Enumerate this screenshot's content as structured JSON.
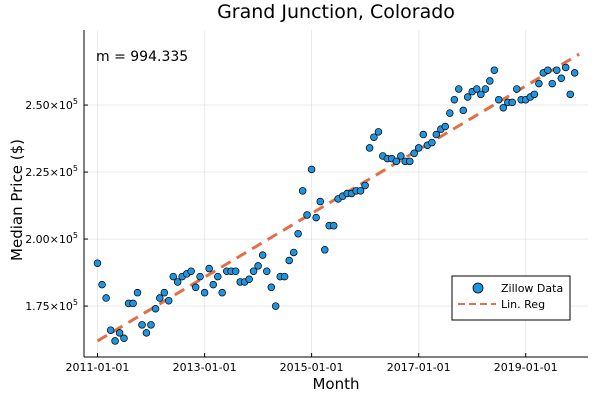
{
  "chart_data": {
    "type": "scatter",
    "title": "Grand Junction, Colorado",
    "xlabel": "Month",
    "ylabel": "Median Price ($)",
    "annotation": "m = 994.335",
    "x_ticks": [
      "2011-01-01",
      "2013-01-01",
      "2015-01-01",
      "2017-01-01",
      "2019-01-01"
    ],
    "y_ticks": [
      {
        "value": 175000,
        "mantissa": "1.75",
        "exp": "5"
      },
      {
        "value": 200000,
        "mantissa": "2.00",
        "exp": "5"
      },
      {
        "value": 225000,
        "mantissa": "2.25",
        "exp": "5"
      },
      {
        "value": 250000,
        "mantissa": "2.50",
        "exp": "5"
      }
    ],
    "xlim": [
      "2010-10-01",
      "2020-03-01"
    ],
    "ylim": [
      156000,
      278000
    ],
    "grid": true,
    "legend_position": "bottom-right",
    "series": [
      {
        "name": "Zillow Data",
        "kind": "scatter",
        "color": "#1f94e0",
        "x": [
          "2011-01",
          "2011-02",
          "2011-03",
          "2011-04",
          "2011-05",
          "2011-06",
          "2011-07",
          "2011-08",
          "2011-09",
          "2011-10",
          "2011-11",
          "2011-12",
          "2012-01",
          "2012-02",
          "2012-03",
          "2012-04",
          "2012-05",
          "2012-06",
          "2012-07",
          "2012-08",
          "2012-09",
          "2012-10",
          "2012-11",
          "2012-12",
          "2013-01",
          "2013-02",
          "2013-03",
          "2013-04",
          "2013-05",
          "2013-06",
          "2013-07",
          "2013-08",
          "2013-09",
          "2013-10",
          "2013-11",
          "2013-12",
          "2014-01",
          "2014-02",
          "2014-03",
          "2014-04",
          "2014-05",
          "2014-06",
          "2014-07",
          "2014-08",
          "2014-09",
          "2014-10",
          "2014-11",
          "2014-12",
          "2015-01",
          "2015-02",
          "2015-03",
          "2015-04",
          "2015-05",
          "2015-06",
          "2015-07",
          "2015-08",
          "2015-09",
          "2015-10",
          "2015-11",
          "2015-12",
          "2016-01",
          "2016-02",
          "2016-03",
          "2016-04",
          "2016-05",
          "2016-06",
          "2016-07",
          "2016-08",
          "2016-09",
          "2016-10",
          "2016-11",
          "2016-12",
          "2017-01",
          "2017-02",
          "2017-03",
          "2017-04",
          "2017-05",
          "2017-06",
          "2017-07",
          "2017-08",
          "2017-09",
          "2017-10",
          "2017-11",
          "2017-12",
          "2018-01",
          "2018-02",
          "2018-03",
          "2018-04",
          "2018-05",
          "2018-06",
          "2018-07",
          "2018-08",
          "2018-09",
          "2018-10",
          "2018-11",
          "2018-12",
          "2019-01",
          "2019-02",
          "2019-03",
          "2019-04",
          "2019-05",
          "2019-06",
          "2019-07",
          "2019-08",
          "2019-09",
          "2019-10",
          "2019-11",
          "2019-12"
        ],
        "y": [
          191000,
          183000,
          178000,
          166000,
          162000,
          165000,
          163000,
          176000,
          176000,
          180000,
          168000,
          165000,
          168000,
          174000,
          178000,
          180000,
          177000,
          186000,
          184000,
          186000,
          187000,
          188000,
          182000,
          186000,
          180000,
          189000,
          183000,
          186000,
          180000,
          188000,
          188000,
          188000,
          184000,
          184000,
          185000,
          188000,
          190000,
          194000,
          188000,
          182000,
          175000,
          186000,
          186000,
          192000,
          195000,
          202000,
          218000,
          209000,
          226000,
          208000,
          214000,
          196000,
          205000,
          205000,
          215000,
          216000,
          217000,
          217000,
          218000,
          218000,
          220000,
          234000,
          238000,
          240000,
          231000,
          230000,
          230000,
          229000,
          231000,
          229000,
          229000,
          232000,
          234000,
          239000,
          235000,
          236000,
          239000,
          241000,
          242000,
          247000,
          252000,
          256000,
          248000,
          253000,
          255000,
          256000,
          254000,
          256000,
          259000,
          263000,
          252000,
          249000,
          251000,
          251000,
          256000,
          252000,
          252000,
          253000,
          254000,
          258000,
          262000,
          263000,
          258000,
          263000,
          260000,
          264000,
          254000,
          262000
        ]
      },
      {
        "name": "Lin. Reg",
        "kind": "line",
        "color": "#e26f46",
        "x": [
          "2011-01-01",
          "2020-01-01"
        ],
        "y": [
          162000,
          269000
        ]
      }
    ]
  }
}
